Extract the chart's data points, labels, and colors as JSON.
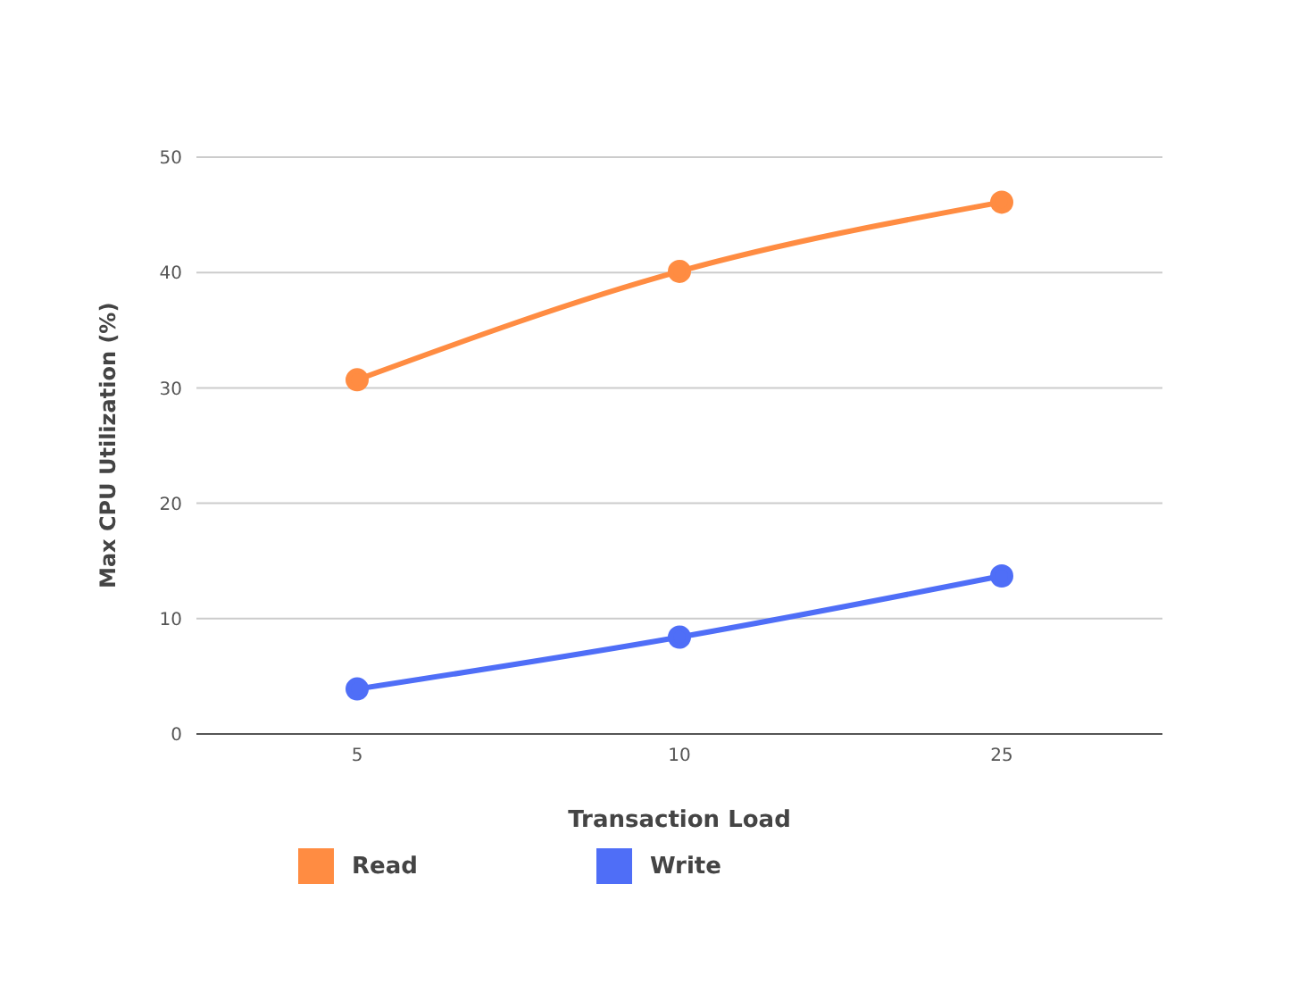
{
  "chart_data": {
    "type": "line",
    "xlabel": "Transaction Load",
    "ylabel": "Max CPU Utilization (%)",
    "categories": [
      "5",
      "10",
      "25"
    ],
    "series": [
      {
        "name": "Read",
        "color": "#ff8c42",
        "values": [
          30.7,
          40.1,
          46.1
        ]
      },
      {
        "name": "Write",
        "color": "#4f6ef7",
        "values": [
          3.9,
          8.4,
          13.7
        ]
      }
    ],
    "ylim": [
      0,
      50
    ],
    "yticks": [
      0,
      10,
      20,
      30,
      40,
      50
    ],
    "grid": "y",
    "legend": "bottom",
    "marker": "circle",
    "line_style": "solid"
  }
}
